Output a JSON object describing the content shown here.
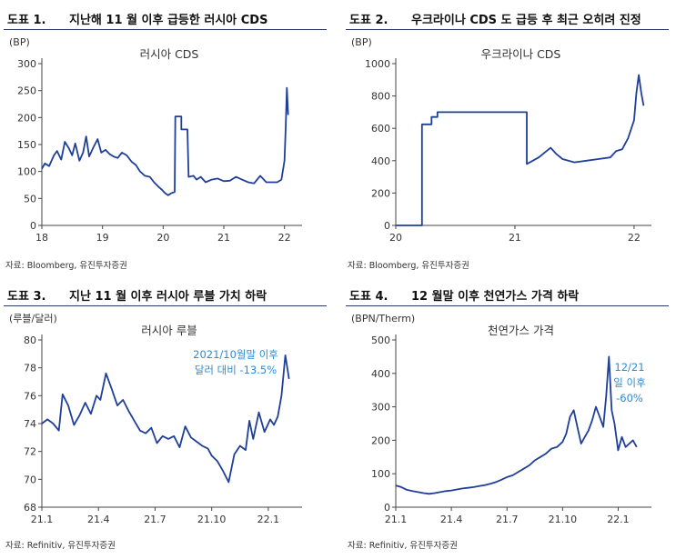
{
  "panels": [
    {
      "label": "도표 1.",
      "title": "지난해 11 월 이후 급등한 러시아 CDS",
      "source": "자료: Bloomberg, 유진투자증권",
      "chart_data": {
        "type": "line",
        "title": "러시아 CDS",
        "unit": "(BP)",
        "x_ticks": [
          "18",
          "19",
          "20",
          "21",
          "22"
        ],
        "xlim": [
          18,
          22.2
        ],
        "ylim": [
          0,
          300
        ],
        "y_ticks": [
          0,
          50,
          100,
          150,
          200,
          250,
          300
        ],
        "line_color": "#1f3f98",
        "series": [
          {
            "x": [
              18.0,
              18.05,
              18.12,
              18.2,
              18.25,
              18.32,
              18.38,
              18.45,
              18.5,
              18.55,
              18.62,
              18.68,
              18.73,
              18.78,
              18.85,
              18.92,
              18.98,
              19.05,
              19.12,
              19.18,
              19.25,
              19.32,
              19.4,
              19.48,
              19.55,
              19.62,
              19.7,
              19.78,
              19.85,
              19.92,
              19.98,
              20.03,
              20.08,
              20.14,
              20.19,
              20.2,
              20.3,
              20.3,
              20.4,
              20.42,
              20.5,
              20.55,
              20.62,
              20.7,
              20.8,
              20.9,
              21.0,
              21.1,
              21.2,
              21.3,
              21.4,
              21.5,
              21.6,
              21.7,
              21.8,
              21.88,
              21.95,
              22.0,
              22.02,
              22.04,
              22.06
            ],
            "y": [
              105,
              115,
              110,
              130,
              138,
              122,
              155,
              142,
              130,
              152,
              120,
              135,
              165,
              128,
              145,
              160,
              135,
              140,
              132,
              128,
              125,
              135,
              130,
              118,
              112,
              100,
              92,
              90,
              80,
              72,
              66,
              60,
              56,
              60,
              62,
              202,
              202,
              178,
              178,
              90,
              92,
              85,
              90,
              80,
              85,
              87,
              82,
              83,
              90,
              85,
              80,
              78,
              92,
              80,
              80,
              80,
              85,
              120,
              180,
              255,
              205
            ]
          }
        ]
      }
    },
    {
      "label": "도표 2.",
      "title": "우크라이나 CDS 도 급등 후 최근 오히려 진정",
      "source": "자료: Bloomberg, 유진투자증권",
      "chart_data": {
        "type": "line",
        "title": "우크라이나 CDS",
        "unit": "(BP)",
        "x_ticks": [
          "20",
          "21",
          "22"
        ],
        "xlim": [
          20,
          22.1
        ],
        "ylim": [
          0,
          1000
        ],
        "y_ticks": [
          0,
          200,
          400,
          600,
          800,
          1000
        ],
        "line_color": "#1f3f98",
        "series": [
          {
            "x": [
              20.0,
              20.22,
              20.22,
              20.3,
              20.3,
              20.35,
              20.35,
              21.1,
              21.1,
              21.15,
              21.2,
              21.3,
              21.35,
              21.4,
              21.5,
              21.6,
              21.7,
              21.8,
              21.85,
              21.9,
              21.95,
              22.0,
              22.02,
              22.04,
              22.06,
              22.08
            ],
            "y": [
              0,
              0,
              625,
              625,
              670,
              670,
              700,
              700,
              380,
              400,
              420,
              480,
              440,
              410,
              390,
              400,
              410,
              420,
              460,
              470,
              540,
              650,
              820,
              930,
              820,
              740
            ]
          }
        ]
      }
    },
    {
      "label": "도표 3.",
      "title": "지난 11 월 이후 러시아 루블 가치 하락",
      "source": "자료: Refinitiv, 유진투자증권",
      "chart_data": {
        "type": "line",
        "title": "러시아 루블",
        "unit": "(루블/달러)",
        "x_ticks": [
          "21.1",
          "21.4",
          "21.7",
          "21.10",
          "22.1"
        ],
        "xlim": [
          0,
          13.5
        ],
        "ylim": [
          68,
          80
        ],
        "y_ticks": [
          68,
          70,
          72,
          74,
          76,
          78,
          80
        ],
        "line_color": "#1f3f98",
        "annotation": [
          "2021/10월말 이후",
          "달러 대비 -13.5%"
        ],
        "series": [
          {
            "x": [
              0,
              0.3,
              0.6,
              0.9,
              1.1,
              1.4,
              1.7,
              2.0,
              2.3,
              2.6,
              2.9,
              3.1,
              3.4,
              3.7,
              4.0,
              4.3,
              4.6,
              4.9,
              5.2,
              5.5,
              5.8,
              6.1,
              6.4,
              6.7,
              7.0,
              7.3,
              7.6,
              7.9,
              8.2,
              8.5,
              8.8,
              9.0,
              9.3,
              9.6,
              9.9,
              10.2,
              10.5,
              10.8,
              11.0,
              11.2,
              11.5,
              11.8,
              12.1,
              12.3,
              12.5,
              12.7,
              12.9,
              13.1
            ],
            "y": [
              74.0,
              74.3,
              74.0,
              73.5,
              76.1,
              75.3,
              73.9,
              74.6,
              75.5,
              74.7,
              76.0,
              75.7,
              77.6,
              76.5,
              75.3,
              75.7,
              74.9,
              74.2,
              73.5,
              73.3,
              73.7,
              72.6,
              73.1,
              72.9,
              73.1,
              72.3,
              73.8,
              73.0,
              72.7,
              72.4,
              72.2,
              71.7,
              71.3,
              70.6,
              69.8,
              71.8,
              72.4,
              72.1,
              74.2,
              72.9,
              74.8,
              73.4,
              74.3,
              73.9,
              74.5,
              76.0,
              78.9,
              77.2
            ]
          }
        ]
      }
    },
    {
      "label": "도표 4.",
      "title": "12 월말 이후 천연가스 가격 하락",
      "source": "자료: Refinitiv, 유진투자증권",
      "chart_data": {
        "type": "line",
        "title": "천연가스 가격",
        "unit": "(BPN/Therm)",
        "x_ticks": [
          "21.1",
          "21.4",
          "21.7",
          "21.10",
          "22.1"
        ],
        "xlim": [
          0,
          13.5
        ],
        "ylim": [
          0,
          500
        ],
        "y_ticks": [
          0,
          100,
          200,
          300,
          400,
          500
        ],
        "line_color": "#1f3f98",
        "annotation": [
          "12/21",
          "일 이후",
          "-60%"
        ],
        "series": [
          {
            "x": [
              0,
              0.3,
              0.6,
              0.9,
              1.2,
              1.5,
              1.8,
              2.1,
              2.4,
              2.7,
              3.0,
              3.3,
              3.6,
              3.9,
              4.2,
              4.5,
              4.8,
              5.1,
              5.4,
              5.7,
              6.0,
              6.3,
              6.6,
              6.9,
              7.2,
              7.5,
              7.8,
              8.1,
              8.4,
              8.7,
              9.0,
              9.2,
              9.4,
              9.6,
              9.8,
              10.0,
              10.2,
              10.4,
              10.6,
              10.8,
              11.0,
              11.2,
              11.35,
              11.5,
              11.65,
              11.8,
              12.0,
              12.2,
              12.4,
              12.6,
              12.8,
              13.0
            ],
            "y": [
              65,
              60,
              52,
              48,
              45,
              42,
              40,
              42,
              45,
              48,
              50,
              53,
              56,
              58,
              60,
              63,
              66,
              70,
              75,
              82,
              90,
              95,
              105,
              115,
              125,
              140,
              150,
              160,
              175,
              180,
              195,
              220,
              270,
              290,
              240,
              190,
              210,
              230,
              260,
              300,
              270,
              240,
              330,
              450,
              290,
              250,
              170,
              210,
              180,
              190,
              200,
              180
            ]
          }
        ]
      }
    }
  ]
}
